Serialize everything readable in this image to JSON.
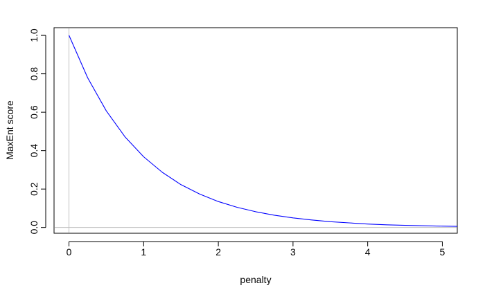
{
  "chart_data": {
    "type": "line",
    "title": "",
    "xlabel": "penalty",
    "ylabel": "MaxEnt score",
    "xlim": [
      -0.2,
      5.2
    ],
    "ylim": [
      -0.03,
      1.04
    ],
    "xticks": [
      0,
      1,
      2,
      3,
      4,
      5
    ],
    "xtick_labels": [
      "0",
      "1",
      "2",
      "3",
      "4",
      "5"
    ],
    "yticks": [
      0.0,
      0.2,
      0.4,
      0.6,
      0.8,
      1.0
    ],
    "ytick_labels": [
      "0.0",
      "0.2",
      "0.4",
      "0.6",
      "0.8",
      "1.0"
    ],
    "grid": false,
    "reference_lines": {
      "vertical_x": 0,
      "horizontal_y": 0,
      "color": "#bebebe"
    },
    "series": [
      {
        "color": "#0000ff",
        "x": [
          0,
          0.25,
          0.5,
          0.75,
          1,
          1.25,
          1.5,
          1.75,
          2,
          2.25,
          2.5,
          2.75,
          3,
          3.25,
          3.5,
          3.75,
          4,
          4.25,
          4.5,
          4.75,
          5,
          5.2
        ],
        "y": [
          1.0,
          0.779,
          0.607,
          0.472,
          0.368,
          0.287,
          0.223,
          0.174,
          0.135,
          0.105,
          0.082,
          0.064,
          0.05,
          0.039,
          0.03,
          0.024,
          0.018,
          0.014,
          0.011,
          0.009,
          0.007,
          0.0055
        ]
      }
    ]
  }
}
